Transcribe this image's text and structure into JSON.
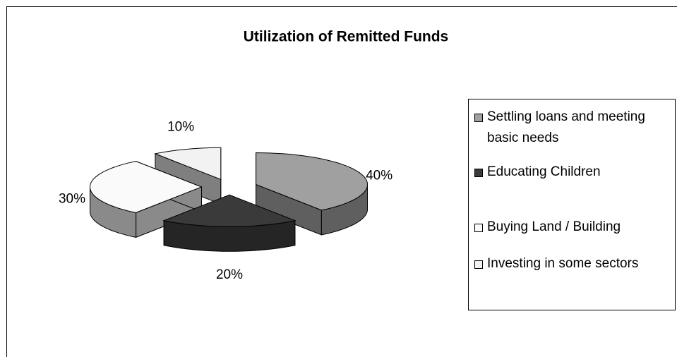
{
  "chart_data": {
    "type": "pie",
    "title": "Utilization of Remitted Funds",
    "categories": [
      "Settling loans and meeting basic needs",
      "Educating Children",
      "Buying Land / Building",
      "Investing in some sectors"
    ],
    "values": [
      40,
      20,
      30,
      10
    ],
    "value_labels": [
      "40%",
      "20%",
      "30%",
      "10%"
    ],
    "colors": [
      "#a0a0a0",
      "#3a3a3a",
      "#fafafa",
      "#f2f2f2"
    ],
    "side_colors": [
      "#5f5f5f",
      "#252525",
      "#8a8a8a",
      "#7f7f7f"
    ],
    "legend": "right"
  }
}
